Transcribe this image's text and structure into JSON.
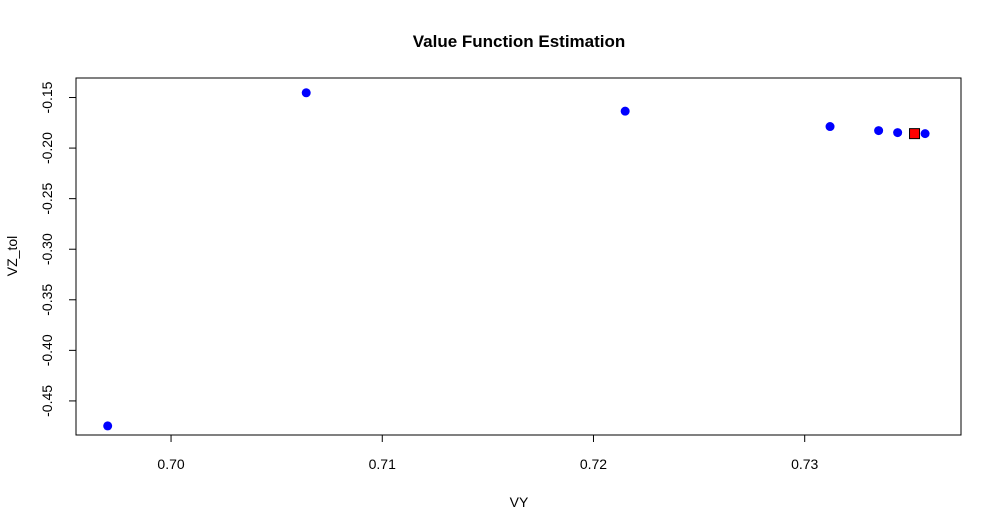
{
  "chart_data": {
    "type": "scatter",
    "title": "Value Function Estimation",
    "xlabel": "VY",
    "ylabel": "VZ_tol",
    "xlim": [
      0.6955,
      0.7374
    ],
    "ylim": [
      -0.4837,
      -0.1307
    ],
    "x_ticks": [
      0.7,
      0.71,
      0.72,
      0.73
    ],
    "x_tick_labels": [
      "0.70",
      "0.71",
      "0.72",
      "0.73"
    ],
    "y_ticks": [
      -0.45,
      -0.4,
      -0.35,
      -0.3,
      -0.25,
      -0.2,
      -0.15
    ],
    "y_tick_labels": [
      "-0.45",
      "-0.40",
      "-0.35",
      "-0.30",
      "-0.25",
      "-0.20",
      "-0.15"
    ],
    "grid": false,
    "series": [
      {
        "marker": "circle",
        "color": "#0000ff",
        "points": [
          {
            "x": 0.697,
            "y": -0.4747
          },
          {
            "x": 0.7064,
            "y": -0.1453
          },
          {
            "x": 0.7215,
            "y": -0.1635
          },
          {
            "x": 0.7312,
            "y": -0.1787
          },
          {
            "x": 0.7335,
            "y": -0.1827
          },
          {
            "x": 0.7344,
            "y": -0.1847
          },
          {
            "x": 0.7357,
            "y": -0.1857
          }
        ]
      },
      {
        "marker": "square",
        "color": "#ff0000",
        "points": [
          {
            "x": 0.7352,
            "y": -0.1857
          }
        ]
      }
    ]
  }
}
